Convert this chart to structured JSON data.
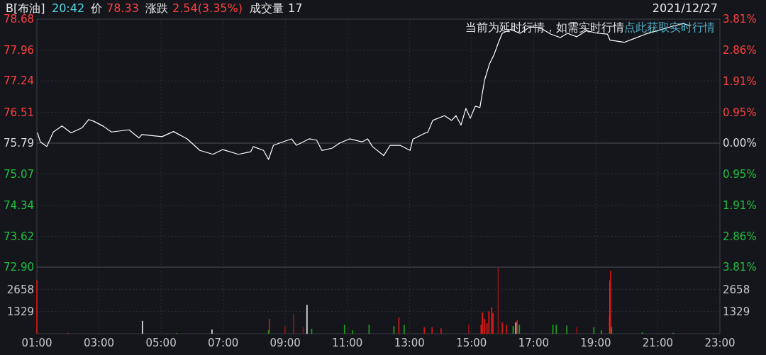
{
  "chart_data": [
    {
      "type": "line",
      "title": "B[布油]",
      "annotations": [
        "20:42",
        "价",
        "78.33",
        "涨跌",
        "2.54(3.35%)",
        "成交量",
        "17",
        "2021/12/27",
        "当前为延时行情，如需实时行情",
        "点此获取实时行情"
      ],
      "series": [
        {
          "color": "#ffffff",
          "x": [
            1.02,
            1.11,
            1.32,
            1.53,
            1.81,
            2.1,
            2.46,
            2.67,
            2.83,
            3.15,
            3.4,
            3.97,
            4.29,
            4.38,
            5.03,
            5.4,
            5.84,
            6.25,
            6.67,
            6.99,
            7.49,
            7.89,
            7.97,
            8.3,
            8.46,
            8.62,
            9.2,
            9.36,
            9.77,
            10.01,
            10.18,
            10.5,
            10.75,
            11.07,
            11.48,
            11.65,
            11.81,
            12.17,
            12.38,
            12.7,
            13.02,
            13.11,
            13.52,
            13.59,
            13.75,
            14.13,
            14.36,
            14.5,
            14.66,
            14.82,
            14.96,
            15.12,
            15.27,
            15.42,
            15.58,
            15.73,
            15.87,
            15.99,
            16.26,
            16.56,
            16.87,
            17.18,
            17.56,
            17.86,
            18.09,
            18.39,
            18.7,
            19.07,
            19.38,
            19.46,
            19.92,
            20.21,
            20.6,
            20.98,
            21.36,
            21.81,
            22.04
          ],
          "values": [
            76.03,
            75.82,
            75.71,
            76.05,
            76.19,
            76.03,
            76.15,
            76.34,
            76.3,
            76.18,
            76.05,
            76.1,
            75.91,
            75.99,
            75.94,
            76.06,
            75.89,
            75.62,
            75.53,
            75.64,
            75.53,
            75.59,
            75.71,
            75.62,
            75.41,
            75.74,
            75.89,
            75.74,
            75.89,
            75.86,
            75.62,
            75.67,
            75.79,
            75.89,
            75.82,
            75.89,
            75.71,
            75.5,
            75.74,
            75.74,
            75.62,
            75.88,
            76.03,
            76.04,
            76.32,
            76.43,
            76.32,
            76.43,
            76.21,
            76.6,
            76.37,
            76.65,
            76.62,
            77.26,
            77.64,
            77.86,
            78.14,
            78.35,
            78.44,
            78.35,
            78.49,
            78.49,
            78.33,
            78.25,
            78.35,
            78.27,
            78.41,
            78.35,
            78.33,
            78.19,
            78.14,
            78.22,
            78.33,
            78.41,
            78.49,
            78.58,
            78.52
          ]
        }
      ],
      "xlim": [
        1,
        23
      ],
      "xticks": [
        {
          "value": 1,
          "label": null
        },
        {
          "value": 3,
          "label": null
        },
        {
          "value": 5,
          "label": null
        },
        {
          "value": 7,
          "label": null
        },
        {
          "value": 9,
          "label": null
        },
        {
          "value": 11,
          "label": null
        },
        {
          "value": 13,
          "label": null
        },
        {
          "value": 15,
          "label": null
        },
        {
          "value": 17,
          "label": null
        },
        {
          "value": 19,
          "label": null
        },
        {
          "value": 21,
          "label": null
        },
        {
          "value": 23,
          "label": null
        }
      ],
      "ylim": [
        72.9,
        78.68
      ],
      "yticks": [
        78.68,
        77.96,
        77.24,
        76.51,
        75.79,
        75.07,
        74.34,
        73.62,
        {
          "value": 72.9,
          "label": "72.90"
        }
      ],
      "y2lim": [
        -3.81,
        3.81
      ],
      "y2ticks": [
        {
          "value": 3.81,
          "label": "3.81%"
        },
        {
          "value": 2.86,
          "label": "2.86%"
        },
        {
          "value": 1.91,
          "label": "1.91%"
        },
        {
          "value": 0.95,
          "label": "0.95%"
        },
        {
          "value": 0,
          "label": "0.00%"
        },
        {
          "value": -0.95,
          "label": "0.95%"
        },
        {
          "value": -1.91,
          "label": "1.91%"
        },
        {
          "value": -2.86,
          "label": "2.86%"
        },
        {
          "value": -3.81,
          "label": "3.81%"
        }
      ],
      "ref_lines": [
        {
          "axis": "y",
          "value": 75.79,
          "color": "#4a4a4a"
        }
      ],
      "grid": true,
      "tick_labels": "y"
    },
    {
      "type": "bar",
      "x": [
        1.0,
        2.0,
        4.4,
        5.5,
        6.64,
        8.46,
        8.49,
        8.99,
        9.27,
        9.58,
        9.7,
        9.85,
        10.91,
        11.17,
        11.7,
        12.5,
        12.66,
        12.83,
        13.48,
        13.73,
        14.02,
        14.91,
        15.31,
        15.35,
        15.42,
        15.5,
        15.56,
        15.65,
        15.69,
        15.86,
        15.99,
        16.13,
        16.34,
        16.43,
        16.47,
        16.54,
        17.62,
        17.73,
        18.07,
        18.39,
        18.94,
        19.18,
        19.44,
        19.46,
        19.48,
        19.51,
        20.5,
        21.5
      ],
      "values": [
        3200,
        50,
        770,
        40,
        250,
        210,
        890,
        460,
        1190,
        380,
        1730,
        300,
        540,
        210,
        540,
        460,
        980,
        540,
        390,
        390,
        330,
        560,
        540,
        1270,
        890,
        630,
        1340,
        1590,
        1240,
        3950,
        680,
        540,
        460,
        680,
        810,
        540,
        540,
        540,
        490,
        390,
        380,
        210,
        1100,
        3200,
        3770,
        390,
        80,
        60
      ],
      "colors": [
        "#c81818",
        "#c81818",
        "#d8d8d8",
        "#1f9a1f",
        "#d8d8d8",
        "#1f9a1f",
        "#c81818",
        "#8b1414",
        "#8b1414",
        "#8b1414",
        "#d8d8d8",
        "#1f9a1f",
        "#1f9a1f",
        "#1f9a1f",
        "#1f9a1f",
        "#1f9a1f",
        "#c81818",
        "#1f9a1f",
        "#c81818",
        "#c81818",
        "#c81818",
        "#8b1414",
        "#e01818",
        "#e01818",
        "#e01818",
        "#e01818",
        "#e01818",
        "#e01818",
        "#e01818",
        "#8b1414",
        "#c81818",
        "#c81818",
        "#1f9a1f",
        "#d8d8d8",
        "#c81818",
        "#1f9a1f",
        "#1f9a1f",
        "#1f9a1f",
        "#1f9a1f",
        "#8b1414",
        "#1f9a1f",
        "#1f9a1f",
        "#8b1414",
        "#1f9a1f",
        "#c81818",
        "#1f9a1f",
        "#1f9a1f",
        "#1f9a1f"
      ],
      "xlim": [
        1,
        23
      ],
      "xticks": [
        {
          "value": 1,
          "label": "01:00"
        },
        {
          "value": 3,
          "label": "03:00"
        },
        {
          "value": 5,
          "label": "05:00"
        },
        {
          "value": 7,
          "label": "07:00"
        },
        {
          "value": 9,
          "label": "09:00"
        },
        {
          "value": 11,
          "label": "11:00"
        },
        {
          "value": 13,
          "label": "13:00"
        },
        {
          "value": 15,
          "label": "15:00"
        },
        {
          "value": 17,
          "label": "17:00"
        },
        {
          "value": 19,
          "label": "19:00"
        },
        {
          "value": 21,
          "label": "21:00"
        },
        {
          "value": 23,
          "label": "23:00"
        }
      ],
      "ylim": [
        0,
        3987
      ],
      "yticks": [
        1329,
        2658
      ],
      "y2lim": [
        0,
        3987
      ],
      "y2ticks": [
        1329,
        2658
      ],
      "grid": true
    }
  ]
}
